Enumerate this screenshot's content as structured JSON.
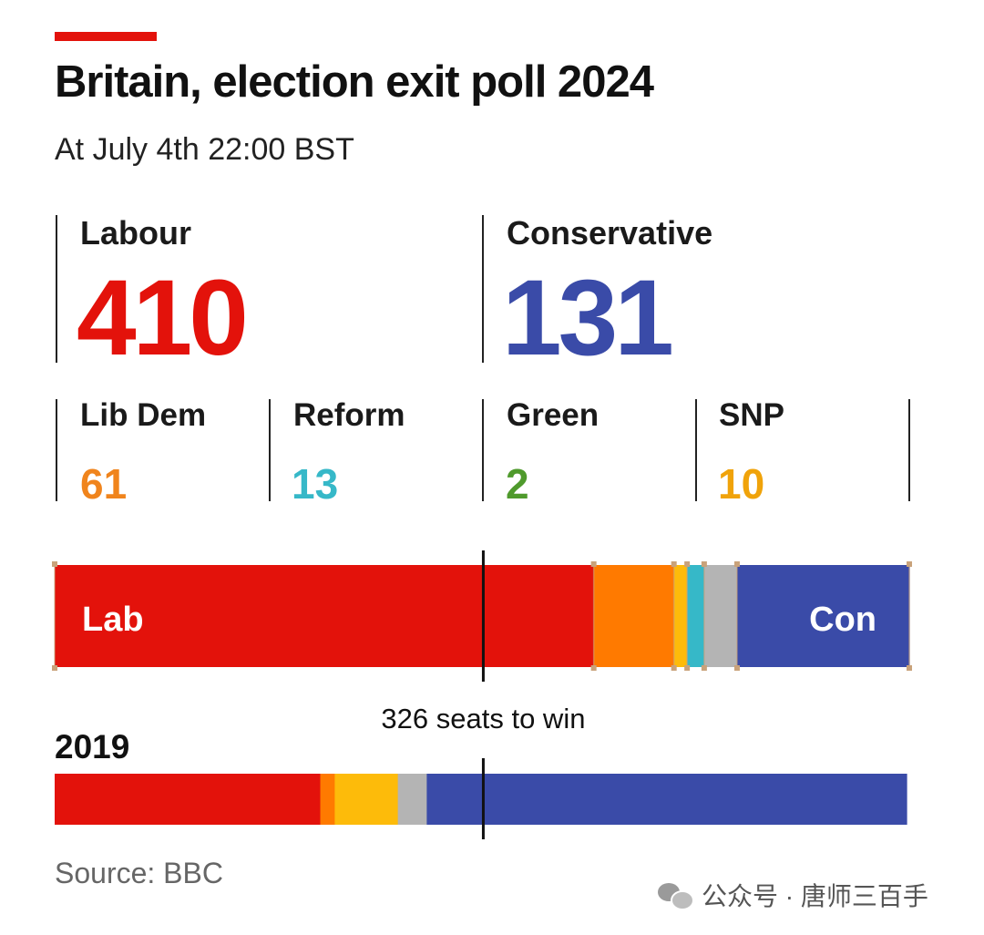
{
  "title": "Britain, election exit poll 2024",
  "subtitle": "At July 4th 22:00 BST",
  "parties": {
    "labour": {
      "name": "Labour",
      "seats": "410",
      "color": "#e3120b"
    },
    "conservative": {
      "name": "Conservative",
      "seats": "131",
      "color": "#3a4ba8"
    },
    "libdem": {
      "name": "Lib Dem",
      "seats": "61",
      "color": "#f0841c"
    },
    "reform": {
      "name": "Reform",
      "seats": "13",
      "color": "#36b8c8"
    },
    "green": {
      "name": "Green",
      "seats": "2",
      "color": "#4f9a2c"
    },
    "snp": {
      "name": "SNP",
      "seats": "10",
      "color": "#f0a30a"
    }
  },
  "chart_data": {
    "type": "bar",
    "orientation": "horizontal-stacked",
    "total_seats": 650,
    "majority_marker": {
      "value": 326,
      "label": "326 seats to win"
    },
    "series": [
      {
        "name": "2024",
        "segments": [
          {
            "party": "Lab",
            "value": 410,
            "color": "#e3120b",
            "label": "Lab"
          },
          {
            "party": "Lib Dem",
            "value": 61,
            "color": "#ff7a00",
            "label": ""
          },
          {
            "party": "SNP",
            "value": 10,
            "color": "#fdbb0a",
            "label": ""
          },
          {
            "party": "Reform",
            "value": 13,
            "color": "#36b8c8",
            "label": ""
          },
          {
            "party": "Others",
            "value": 25,
            "color": "#b4b4b4",
            "label": ""
          },
          {
            "party": "Con",
            "value": 131,
            "color": "#3a4ba8",
            "label": "Con"
          }
        ]
      },
      {
        "name": "2019",
        "segments": [
          {
            "party": "Lab",
            "value": 202,
            "color": "#e3120b"
          },
          {
            "party": "Lib Dem",
            "value": 11,
            "color": "#ff7a00"
          },
          {
            "party": "SNP",
            "value": 48,
            "color": "#fdbb0a"
          },
          {
            "party": "Others",
            "value": 22,
            "color": "#b4b4b4"
          },
          {
            "party": "Con",
            "value": 365,
            "color": "#3a4ba8"
          }
        ]
      }
    ]
  },
  "series_label_2019": "2019",
  "source": "Source: BBC",
  "watermark": "公众号 · 唐师三百手"
}
